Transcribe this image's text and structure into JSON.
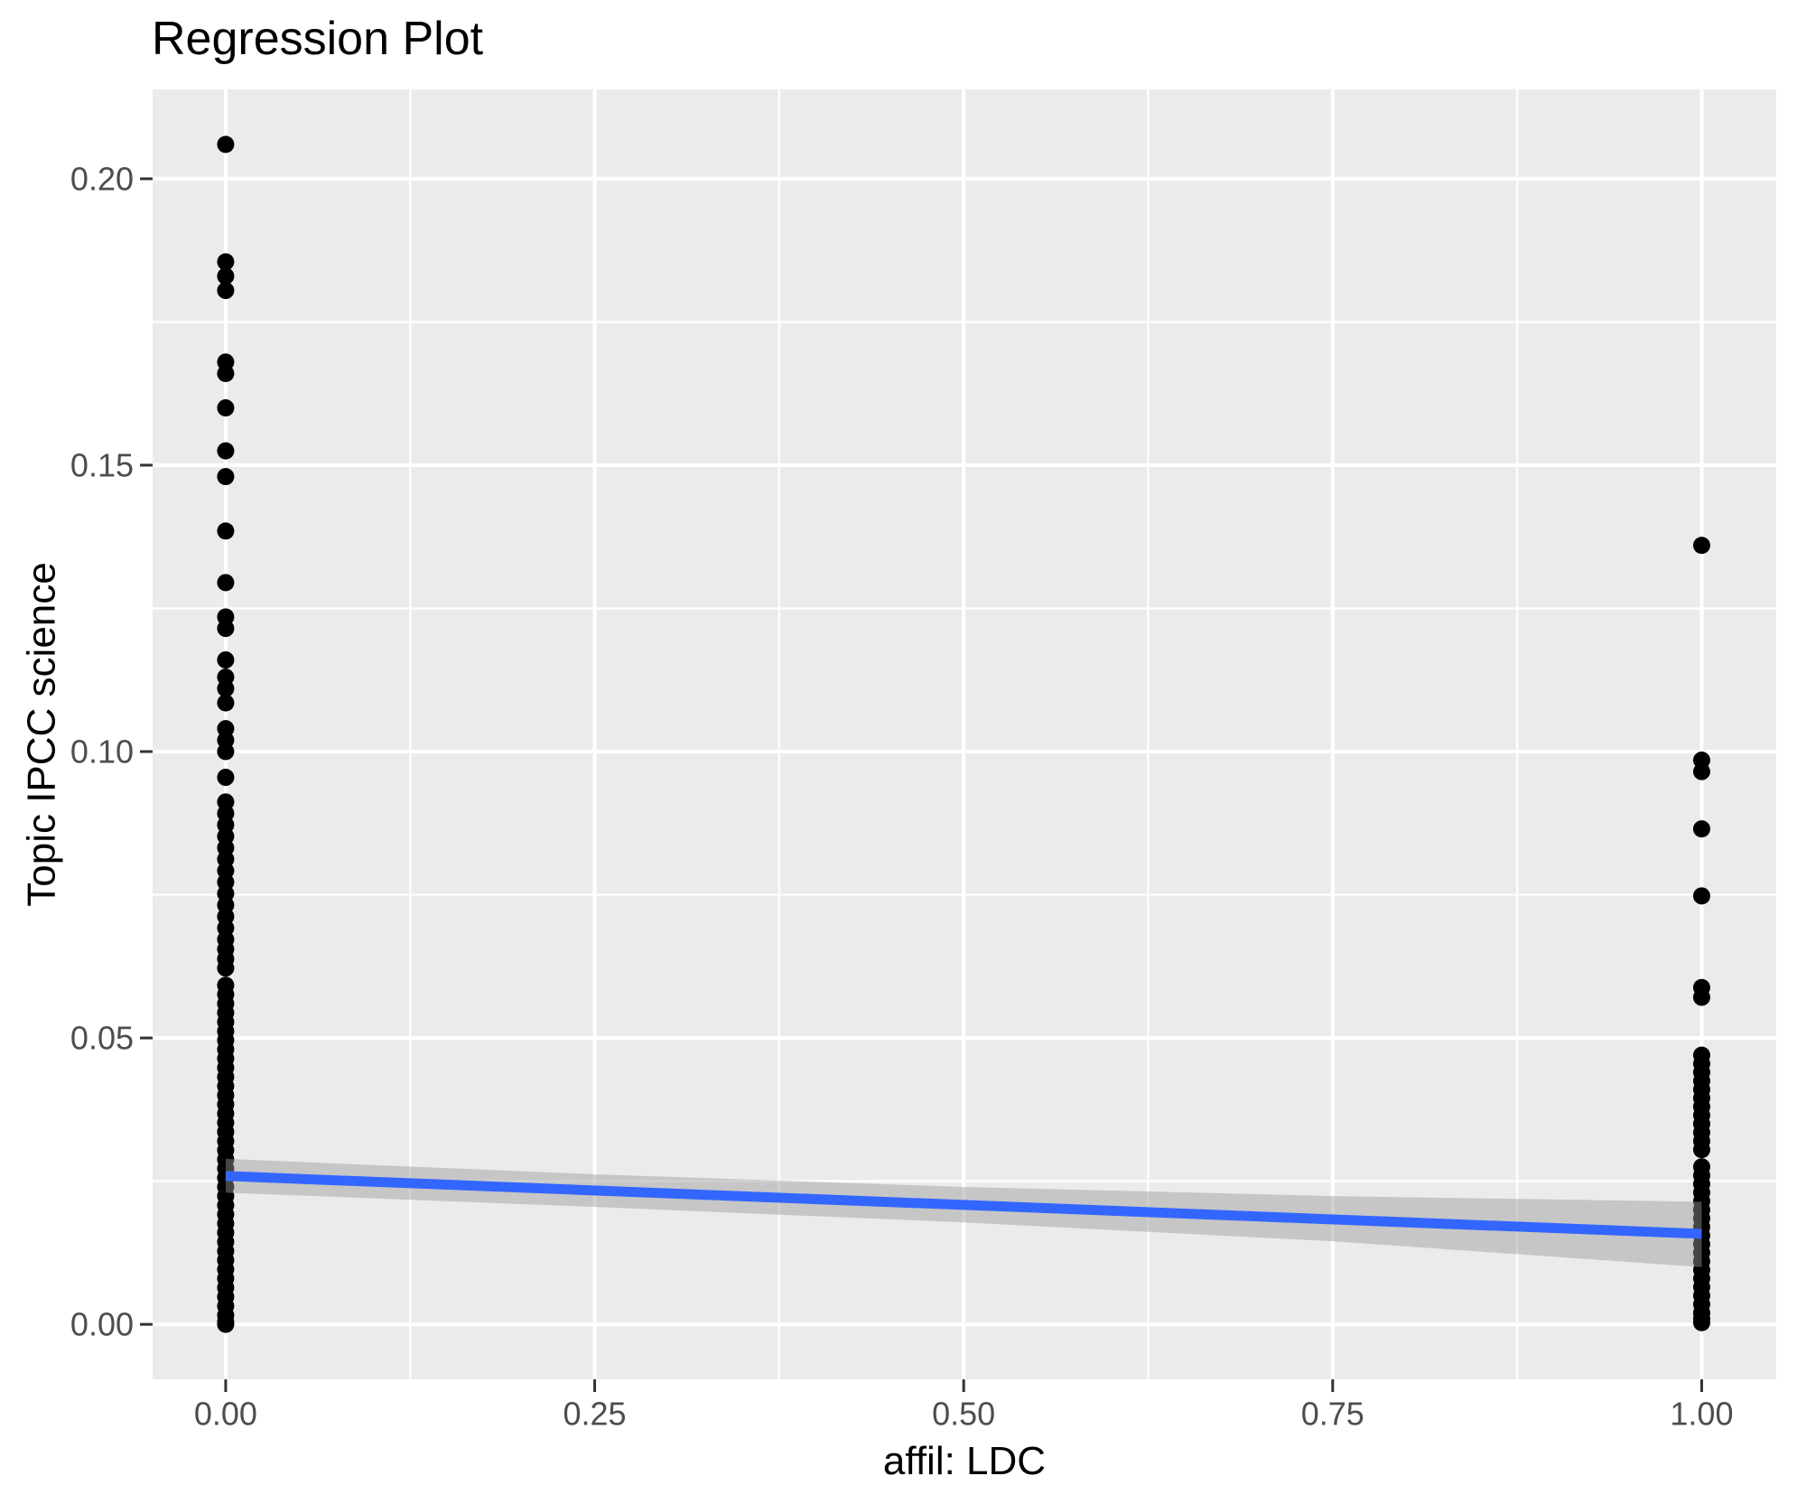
{
  "title": "Regression Plot",
  "chart_data": {
    "type": "scatter",
    "title": "Regression Plot",
    "xlabel": "affil: LDC",
    "ylabel": "Topic IPCC science",
    "x_ticks": [
      0.0,
      0.25,
      0.5,
      0.75,
      1.0
    ],
    "x_tick_labels": [
      "0.00",
      "0.25",
      "0.50",
      "0.75",
      "1.00"
    ],
    "y_ticks": [
      0.0,
      0.05,
      0.1,
      0.15,
      0.2
    ],
    "y_tick_labels": [
      "0.00",
      "0.05",
      "0.10",
      "0.15",
      "0.20"
    ],
    "xlim": [
      -0.0495,
      1.0505
    ],
    "ylim": [
      -0.0096,
      0.2156
    ],
    "grid": "major-and-minor",
    "legend": "none",
    "series": [
      {
        "name": "affil: LDC = 0",
        "x": 0,
        "values": [
          0.206,
          0.1855,
          0.183,
          0.1805,
          0.168,
          0.166,
          0.16,
          0.1525,
          0.148,
          0.1385,
          0.1295,
          0.1235,
          0.1215,
          0.116,
          0.113,
          0.111,
          0.1085,
          0.104,
          0.102,
          0.1,
          0.0955,
          0.0912,
          0.0892,
          0.0872,
          0.0852,
          0.0832,
          0.0812,
          0.0792,
          0.0772,
          0.0752,
          0.0732,
          0.0712,
          0.0692,
          0.0672,
          0.0655,
          0.0638,
          0.0622,
          0.0592,
          0.0576,
          0.056,
          0.0544,
          0.0528,
          0.0512,
          0.0496,
          0.048,
          0.0464,
          0.0448,
          0.0432,
          0.0416,
          0.04,
          0.0384,
          0.0368,
          0.0352,
          0.0336,
          0.032,
          0.0304,
          0.0288,
          0.0272,
          0.0256,
          0.024,
          0.0224,
          0.0208,
          0.0192,
          0.0176,
          0.016,
          0.0144,
          0.0128,
          0.0112,
          0.0096,
          0.008,
          0.0064,
          0.0048,
          0.0032,
          0.0016,
          0.0005,
          0.0
        ]
      },
      {
        "name": "affil: LDC = 1",
        "x": 1,
        "values": [
          0.136,
          0.0985,
          0.0965,
          0.0865,
          0.0748,
          0.0588,
          0.0571,
          0.047,
          0.0455,
          0.044,
          0.0425,
          0.041,
          0.0395,
          0.038,
          0.0365,
          0.035,
          0.0335,
          0.032,
          0.0305,
          0.0275,
          0.026,
          0.0245,
          0.023,
          0.0215,
          0.02,
          0.0185,
          0.017,
          0.0155,
          0.014,
          0.0125,
          0.011,
          0.0095,
          0.008,
          0.0065,
          0.005,
          0.0035,
          0.002,
          0.001,
          0.0003
        ]
      }
    ],
    "regression": {
      "x": [
        0,
        1
      ],
      "fit": [
        0.0259,
        0.0158
      ]
    },
    "confidence_band": {
      "x": [
        0,
        0.25,
        0.5,
        0.75,
        1
      ],
      "upper": [
        0.0289,
        0.0262,
        0.024,
        0.0224,
        0.0214
      ],
      "lower": [
        0.023,
        0.0205,
        0.0178,
        0.0145,
        0.01
      ]
    },
    "colors": {
      "figure_bg": "#FFFFFF",
      "panel_bg": "#EBEBEB",
      "grid": "#FFFFFF",
      "point": "#000000",
      "regression_line": "#3366FF",
      "band": "#999999",
      "tick_mark": "#333333",
      "tick_label": "#4D4D4D",
      "text": "#000000"
    },
    "band_opacity": 0.45
  }
}
